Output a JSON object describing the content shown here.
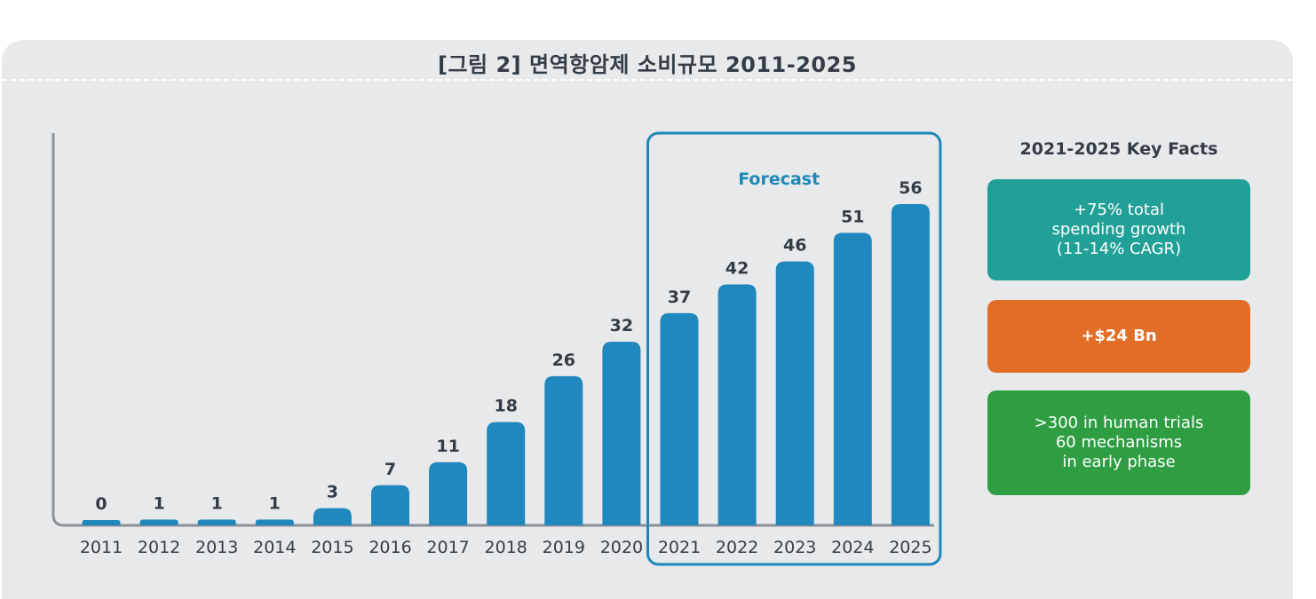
{
  "title": "[그림 2] 면역항암제 소비규모 2011-2025",
  "chart_data": {
    "type": "bar",
    "title": "[그림 2] 면역항암제 소비규모 2011-2025",
    "categories": [
      "2011",
      "2012",
      "2013",
      "2014",
      "2015",
      "2016",
      "2017",
      "2018",
      "2019",
      "2020",
      "2021",
      "2022",
      "2023",
      "2024",
      "2025"
    ],
    "values": [
      0,
      1,
      1,
      1,
      3,
      7,
      11,
      18,
      26,
      32,
      37,
      42,
      46,
      51,
      56
    ],
    "ylim": [
      0,
      60
    ],
    "xlabel": "",
    "ylabel": "",
    "grid": false,
    "forecast_label": "Forecast",
    "forecast_range": [
      "2021",
      "2025"
    ],
    "bar_color": "#1f88be",
    "forecast_box_color": "#1e88b8"
  },
  "key_facts": {
    "heading": "2021-2025 Key Facts",
    "items": [
      {
        "lines": [
          "+75% total",
          "spending growth",
          "(11-14% CAGR)"
        ],
        "color": "#21a097"
      },
      {
        "lines": [
          "+$24 Bn"
        ],
        "color": "#e26d26"
      },
      {
        "lines": [
          ">300 in human trials",
          "60 mechanisms",
          "in early phase"
        ],
        "color": "#2f9e43"
      }
    ]
  }
}
